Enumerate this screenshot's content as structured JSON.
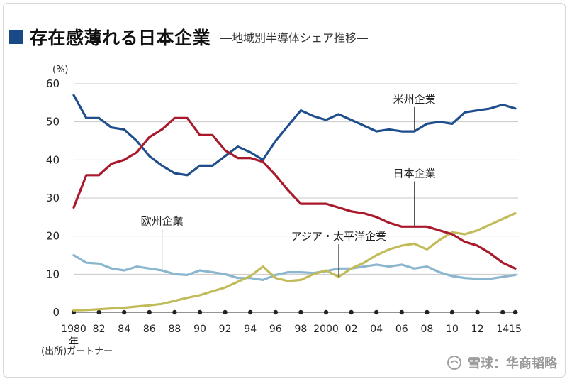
{
  "header": {
    "title": "存在感薄れる日本企業",
    "subtitle": "―地域別半導体シェア推移―"
  },
  "source_note": "(出所)ガートナー",
  "watermark": "雪球：华商韬略",
  "colors": {
    "us": "#1f4e8c",
    "japan": "#a8192b",
    "europe": "#8bb6cf",
    "asia": "#c2bb5a",
    "marker": "#222222",
    "title_square": "#1a4a86"
  },
  "chart_data": {
    "type": "line",
    "title": "存在感薄れる日本企業",
    "subtitle": "―地域別半導体シェア推移―",
    "ylabel": "(%)",
    "xlabel": "年",
    "ylim": [
      0,
      60
    ],
    "xlim": [
      1980,
      2015
    ],
    "y_ticks": [
      0,
      10,
      20,
      30,
      40,
      50,
      60
    ],
    "x_ticks": [
      1980,
      1982,
      1984,
      1986,
      1988,
      1990,
      1992,
      1994,
      1996,
      1998,
      2000,
      2002,
      2004,
      2006,
      2008,
      2010,
      2012,
      2014,
      2015
    ],
    "x_tick_labels": [
      "1980",
      "82",
      "84",
      "86",
      "88",
      "90",
      "92",
      "94",
      "96",
      "98",
      "2000",
      "02",
      "04",
      "06",
      "08",
      "10",
      "12",
      "14",
      "15"
    ],
    "x_year_suffix": "年",
    "x": [
      1980,
      1981,
      1982,
      1983,
      1984,
      1985,
      1986,
      1987,
      1988,
      1989,
      1990,
      1991,
      1992,
      1993,
      1994,
      1995,
      1996,
      1997,
      1998,
      1999,
      2000,
      2001,
      2002,
      2003,
      2004,
      2005,
      2006,
      2007,
      2008,
      2009,
      2010,
      2011,
      2012,
      2013,
      2014,
      2015
    ],
    "series": [
      {
        "name": "米州企業",
        "key": "us",
        "values": [
          57,
          51,
          51,
          48.5,
          48,
          45,
          41,
          38.5,
          36.5,
          36,
          38.5,
          38.5,
          41,
          43.5,
          42,
          40,
          45,
          49,
          53,
          51.5,
          50.5,
          52,
          50.5,
          49,
          47.5,
          48,
          47.5,
          47.5,
          49.5,
          50,
          49.5,
          52.5,
          53,
          53.5,
          54.5,
          53.5
        ]
      },
      {
        "name": "日本企業",
        "key": "japan",
        "values": [
          27.5,
          36,
          36,
          39,
          40,
          42,
          46,
          48,
          51,
          51,
          46.5,
          46.5,
          42.5,
          40.5,
          40.5,
          39.5,
          36,
          32,
          28.5,
          28.5,
          28.5,
          27.5,
          26.5,
          26,
          25,
          23.5,
          22.5,
          22.5,
          22.5,
          21.5,
          20.5,
          18.5,
          17.5,
          15.5,
          13,
          11.5
        ]
      },
      {
        "name": "欧州企業",
        "key": "europe",
        "values": [
          15,
          13,
          12.8,
          11.5,
          11,
          12,
          11.5,
          11,
          10,
          9.8,
          11,
          10.5,
          10,
          9,
          9,
          8.5,
          9.8,
          10.5,
          10.5,
          10.3,
          10.8,
          11.5,
          11.5,
          12,
          12.5,
          12,
          12.5,
          11.5,
          12,
          10.5,
          9.5,
          9,
          8.8,
          8.8,
          9.3,
          9.8
        ]
      },
      {
        "name": "アジア・太平洋企業",
        "key": "asia",
        "values": [
          0.5,
          0.6,
          0.8,
          1,
          1.2,
          1.5,
          1.8,
          2.2,
          3,
          3.8,
          4.5,
          5.5,
          6.5,
          8,
          9.5,
          12,
          9,
          8.2,
          8.5,
          10,
          11,
          9.3,
          11.5,
          13,
          15,
          16.5,
          17.5,
          18,
          16.5,
          19,
          21,
          20.5,
          21.5,
          23,
          24.5,
          26
        ]
      }
    ],
    "labels": [
      {
        "series": "us",
        "text": "米州企業",
        "x": 2007,
        "y": 55
      },
      {
        "series": "japan",
        "text": "日本企業",
        "x": 2007,
        "y": 35.5
      },
      {
        "series": "europe",
        "text": "欧州企業",
        "x": 1987,
        "y": 23
      },
      {
        "series": "asia",
        "text": "アジア・太平洋企業",
        "x": 2001,
        "y": 19
      }
    ]
  }
}
